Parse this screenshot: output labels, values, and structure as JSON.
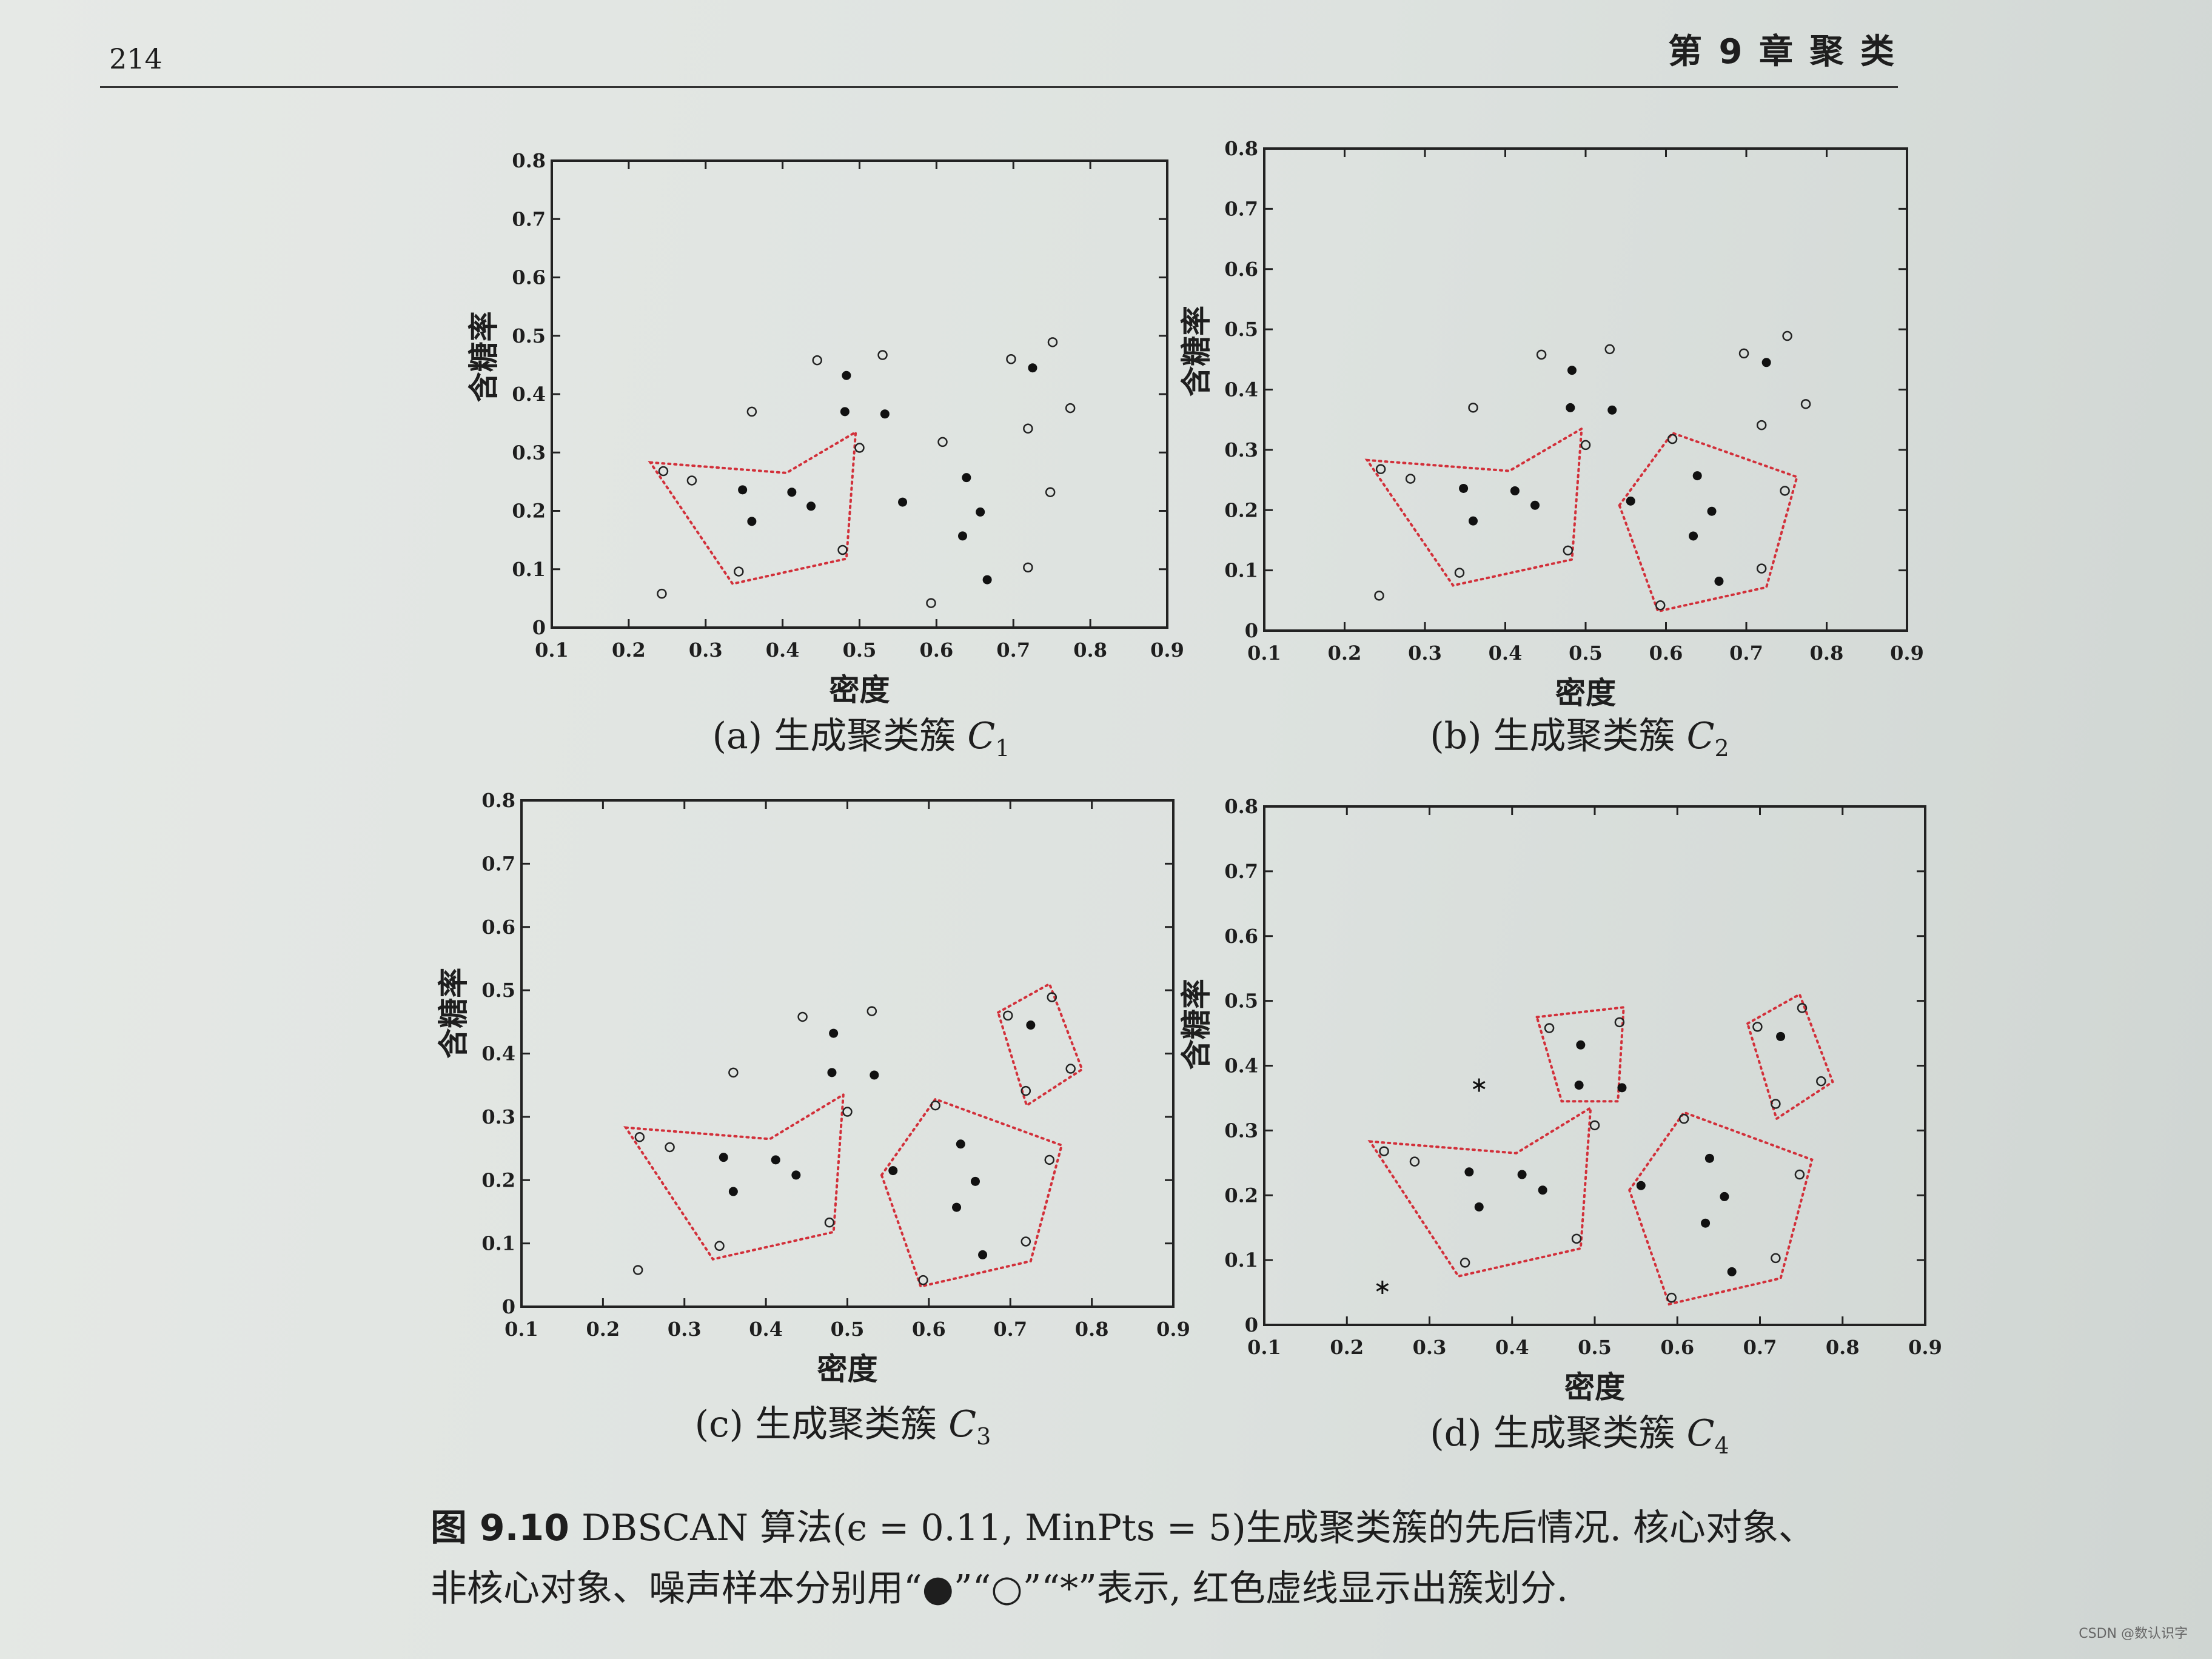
{
  "page": {
    "page_number": "214",
    "chapter_title": "第 9 章  聚    类"
  },
  "panels": [
    {
      "caption_prefix": "(a) 生成聚类簇 ",
      "caption_var": "C",
      "caption_sub": "1"
    },
    {
      "caption_prefix": "(b) 生成聚类簇 ",
      "caption_var": "C",
      "caption_sub": "2"
    },
    {
      "caption_prefix": "(c) 生成聚类簇 ",
      "caption_var": "C",
      "caption_sub": "3"
    },
    {
      "caption_prefix": "(d) 生成聚类簇 ",
      "caption_var": "C",
      "caption_sub": "4"
    }
  ],
  "figure_caption": {
    "label": "图 9.10",
    "line1": "DBSCAN 算法(ϵ = 0.11, MinPts = 5)生成聚类簇的先后情况. 核心对象、",
    "line2": "非核心对象、噪声样本分别用“●”“○”“*”表示, 红色虚线显示出簇划分."
  },
  "watermark": "CSDN @数认识字",
  "chart_data": [
    {
      "type": "scatter",
      "xlabel": "密度",
      "ylabel": "含糖率",
      "xlim": [
        0.1,
        0.9
      ],
      "ylim": [
        0,
        0.8
      ],
      "xticks": [
        "0.1",
        "0.2",
        "0.3",
        "0.4",
        "0.5",
        "0.6",
        "0.7",
        "0.8",
        "0.9"
      ],
      "yticks": [
        "0",
        "0.1",
        "0.2",
        "0.3",
        "0.4",
        "0.5",
        "0.6",
        "0.7",
        "0.8"
      ],
      "core": [
        [
          0.348,
          0.236
        ],
        [
          0.36,
          0.182
        ],
        [
          0.412,
          0.232
        ],
        [
          0.437,
          0.208
        ],
        [
          0.481,
          0.37
        ],
        [
          0.483,
          0.432
        ],
        [
          0.533,
          0.366
        ],
        [
          0.556,
          0.215
        ],
        [
          0.639,
          0.257
        ],
        [
          0.634,
          0.157
        ],
        [
          0.657,
          0.198
        ],
        [
          0.666,
          0.082
        ],
        [
          0.725,
          0.445
        ]
      ],
      "noncore": [
        [
          0.243,
          0.058
        ],
        [
          0.245,
          0.268
        ],
        [
          0.282,
          0.252
        ],
        [
          0.343,
          0.096
        ],
        [
          0.36,
          0.37
        ],
        [
          0.445,
          0.458
        ],
        [
          0.478,
          0.133
        ],
        [
          0.5,
          0.308
        ],
        [
          0.53,
          0.467
        ],
        [
          0.593,
          0.042
        ],
        [
          0.608,
          0.318
        ],
        [
          0.697,
          0.46
        ],
        [
          0.719,
          0.103
        ],
        [
          0.719,
          0.341
        ],
        [
          0.748,
          0.232
        ],
        [
          0.751,
          0.489
        ],
        [
          0.774,
          0.376
        ]
      ],
      "noise": [],
      "clusters": [
        [
          [
            0.228,
            0.283
          ],
          [
            0.405,
            0.265
          ],
          [
            0.495,
            0.335
          ],
          [
            0.483,
            0.118
          ],
          [
            0.335,
            0.075
          ]
        ]
      ]
    },
    {
      "type": "scatter",
      "xlabel": "密度",
      "ylabel": "含糖率",
      "xlim": [
        0.1,
        0.9
      ],
      "ylim": [
        0,
        0.8
      ],
      "xticks": [
        "0.1",
        "0.2",
        "0.3",
        "0.4",
        "0.5",
        "0.6",
        "0.7",
        "0.8",
        "0.9"
      ],
      "yticks": [
        "0",
        "0.1",
        "0.2",
        "0.3",
        "0.4",
        "0.5",
        "0.6",
        "0.7",
        "0.8"
      ],
      "core": [
        [
          0.348,
          0.236
        ],
        [
          0.36,
          0.182
        ],
        [
          0.412,
          0.232
        ],
        [
          0.437,
          0.208
        ],
        [
          0.481,
          0.37
        ],
        [
          0.483,
          0.432
        ],
        [
          0.533,
          0.366
        ],
        [
          0.556,
          0.215
        ],
        [
          0.639,
          0.257
        ],
        [
          0.634,
          0.157
        ],
        [
          0.657,
          0.198
        ],
        [
          0.666,
          0.082
        ],
        [
          0.725,
          0.445
        ]
      ],
      "noncore": [
        [
          0.243,
          0.058
        ],
        [
          0.245,
          0.268
        ],
        [
          0.282,
          0.252
        ],
        [
          0.343,
          0.096
        ],
        [
          0.36,
          0.37
        ],
        [
          0.445,
          0.458
        ],
        [
          0.478,
          0.133
        ],
        [
          0.5,
          0.308
        ],
        [
          0.53,
          0.467
        ],
        [
          0.593,
          0.042
        ],
        [
          0.608,
          0.318
        ],
        [
          0.697,
          0.46
        ],
        [
          0.719,
          0.103
        ],
        [
          0.719,
          0.341
        ],
        [
          0.748,
          0.232
        ],
        [
          0.751,
          0.489
        ],
        [
          0.774,
          0.376
        ]
      ],
      "noise": [],
      "clusters": [
        [
          [
            0.228,
            0.283
          ],
          [
            0.405,
            0.265
          ],
          [
            0.495,
            0.335
          ],
          [
            0.483,
            0.118
          ],
          [
            0.335,
            0.075
          ]
        ],
        [
          [
            0.542,
            0.208
          ],
          [
            0.608,
            0.328
          ],
          [
            0.763,
            0.255
          ],
          [
            0.725,
            0.072
          ],
          [
            0.59,
            0.032
          ]
        ]
      ]
    },
    {
      "type": "scatter",
      "xlabel": "密度",
      "ylabel": "含糖率",
      "xlim": [
        0.1,
        0.9
      ],
      "ylim": [
        0,
        0.8
      ],
      "xticks": [
        "0.1",
        "0.2",
        "0.3",
        "0.4",
        "0.5",
        "0.6",
        "0.7",
        "0.8",
        "0.9"
      ],
      "yticks": [
        "0",
        "0.1",
        "0.2",
        "0.3",
        "0.4",
        "0.5",
        "0.6",
        "0.7",
        "0.8"
      ],
      "core": [
        [
          0.348,
          0.236
        ],
        [
          0.36,
          0.182
        ],
        [
          0.412,
          0.232
        ],
        [
          0.437,
          0.208
        ],
        [
          0.481,
          0.37
        ],
        [
          0.483,
          0.432
        ],
        [
          0.533,
          0.366
        ],
        [
          0.556,
          0.215
        ],
        [
          0.639,
          0.257
        ],
        [
          0.634,
          0.157
        ],
        [
          0.657,
          0.198
        ],
        [
          0.666,
          0.082
        ],
        [
          0.725,
          0.445
        ]
      ],
      "noncore": [
        [
          0.243,
          0.058
        ],
        [
          0.245,
          0.268
        ],
        [
          0.282,
          0.252
        ],
        [
          0.343,
          0.096
        ],
        [
          0.36,
          0.37
        ],
        [
          0.445,
          0.458
        ],
        [
          0.478,
          0.133
        ],
        [
          0.5,
          0.308
        ],
        [
          0.53,
          0.467
        ],
        [
          0.593,
          0.042
        ],
        [
          0.608,
          0.318
        ],
        [
          0.697,
          0.46
        ],
        [
          0.719,
          0.103
        ],
        [
          0.719,
          0.341
        ],
        [
          0.748,
          0.232
        ],
        [
          0.751,
          0.489
        ],
        [
          0.774,
          0.376
        ]
      ],
      "noise": [],
      "clusters": [
        [
          [
            0.228,
            0.283
          ],
          [
            0.405,
            0.265
          ],
          [
            0.495,
            0.335
          ],
          [
            0.483,
            0.118
          ],
          [
            0.335,
            0.075
          ]
        ],
        [
          [
            0.542,
            0.208
          ],
          [
            0.608,
            0.328
          ],
          [
            0.763,
            0.255
          ],
          [
            0.725,
            0.072
          ],
          [
            0.59,
            0.032
          ]
        ],
        [
          [
            0.685,
            0.465
          ],
          [
            0.748,
            0.51
          ],
          [
            0.788,
            0.375
          ],
          [
            0.72,
            0.318
          ]
        ]
      ]
    },
    {
      "type": "scatter",
      "xlabel": "密度",
      "ylabel": "含糖率",
      "xlim": [
        0.1,
        0.9
      ],
      "ylim": [
        0,
        0.8
      ],
      "xticks": [
        "0.1",
        "0.2",
        "0.3",
        "0.4",
        "0.5",
        "0.6",
        "0.7",
        "0.8",
        "0.9"
      ],
      "yticks": [
        "0",
        "0.1",
        "0.2",
        "0.3",
        "0.4",
        "0.5",
        "0.6",
        "0.7",
        "0.8"
      ],
      "core": [
        [
          0.348,
          0.236
        ],
        [
          0.36,
          0.182
        ],
        [
          0.412,
          0.232
        ],
        [
          0.437,
          0.208
        ],
        [
          0.481,
          0.37
        ],
        [
          0.483,
          0.432
        ],
        [
          0.533,
          0.366
        ],
        [
          0.556,
          0.215
        ],
        [
          0.639,
          0.257
        ],
        [
          0.634,
          0.157
        ],
        [
          0.657,
          0.198
        ],
        [
          0.666,
          0.082
        ],
        [
          0.725,
          0.445
        ]
      ],
      "noncore": [
        [
          0.245,
          0.268
        ],
        [
          0.282,
          0.252
        ],
        [
          0.343,
          0.096
        ],
        [
          0.445,
          0.458
        ],
        [
          0.478,
          0.133
        ],
        [
          0.5,
          0.308
        ],
        [
          0.53,
          0.467
        ],
        [
          0.593,
          0.042
        ],
        [
          0.608,
          0.318
        ],
        [
          0.697,
          0.46
        ],
        [
          0.719,
          0.103
        ],
        [
          0.719,
          0.341
        ],
        [
          0.748,
          0.232
        ],
        [
          0.751,
          0.489
        ],
        [
          0.774,
          0.376
        ]
      ],
      "noise": [
        [
          0.243,
          0.058
        ],
        [
          0.36,
          0.37
        ]
      ],
      "clusters": [
        [
          [
            0.228,
            0.283
          ],
          [
            0.405,
            0.265
          ],
          [
            0.495,
            0.335
          ],
          [
            0.483,
            0.118
          ],
          [
            0.335,
            0.075
          ]
        ],
        [
          [
            0.542,
            0.208
          ],
          [
            0.608,
            0.328
          ],
          [
            0.763,
            0.255
          ],
          [
            0.725,
            0.072
          ],
          [
            0.59,
            0.032
          ]
        ],
        [
          [
            0.685,
            0.465
          ],
          [
            0.748,
            0.51
          ],
          [
            0.788,
            0.375
          ],
          [
            0.72,
            0.318
          ]
        ],
        [
          [
            0.43,
            0.475
          ],
          [
            0.535,
            0.49
          ],
          [
            0.528,
            0.345
          ],
          [
            0.46,
            0.345
          ]
        ]
      ]
    }
  ]
}
